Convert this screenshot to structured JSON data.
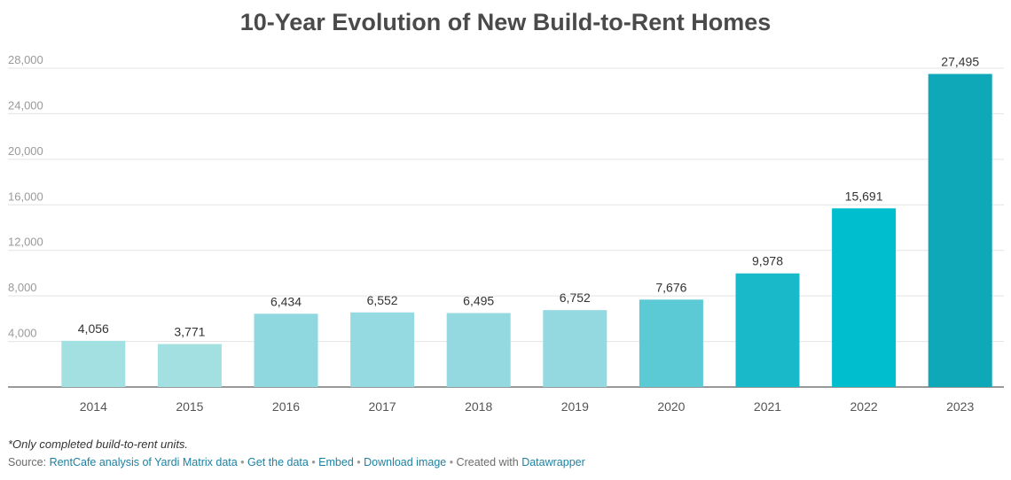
{
  "title": "10-Year Evolution of New Build-to-Rent Homes",
  "chart_data": {
    "type": "bar",
    "title": "10-Year Evolution of New Build-to-Rent Homes",
    "categories": [
      "2014",
      "2015",
      "2016",
      "2017",
      "2018",
      "2019",
      "2020",
      "2021",
      "2022",
      "2023"
    ],
    "values": [
      4056,
      3771,
      6434,
      6552,
      6495,
      6752,
      7676,
      9978,
      15691,
      27495
    ],
    "value_labels": [
      "4,056",
      "3,771",
      "6,434",
      "6,552",
      "6,495",
      "6,752",
      "7,676",
      "9,978",
      "15,691",
      "27,495"
    ],
    "colors": [
      "#a3e0e2",
      "#a3e0e2",
      "#8fd8df",
      "#95dae0",
      "#93d9df",
      "#93d9df",
      "#5ccad5",
      "#1ab9c9",
      "#00bece",
      "#0fa8b8"
    ],
    "yticks": [
      4000,
      8000,
      12000,
      16000,
      20000,
      24000,
      28000
    ],
    "ytick_labels": [
      "4,000",
      "8,000",
      "12,000",
      "16,000",
      "20,000",
      "24,000",
      "28,000"
    ],
    "ylim": [
      0,
      28000
    ],
    "xlabel": "",
    "ylabel": "",
    "grid": true,
    "legend": "none"
  },
  "footer": {
    "note": "*Only completed build-to-rent units.",
    "source_prefix": "Source: ",
    "source_link": "RentCafe analysis of Yardi Matrix data",
    "sep": " • ",
    "get_data": "Get the data",
    "embed": "Embed",
    "download": "Download image",
    "created_with": "Created with ",
    "datawrapper": "Datawrapper"
  }
}
